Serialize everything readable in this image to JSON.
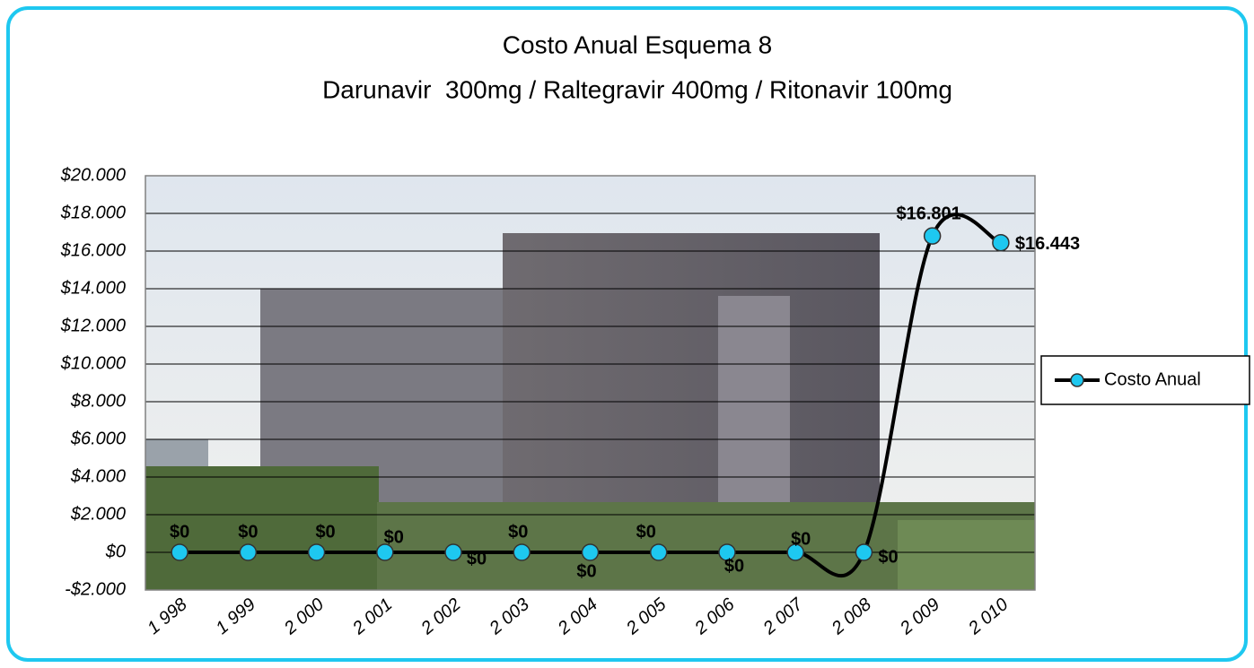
{
  "chart_data": {
    "type": "line",
    "title": "Costo Anual Esquema 8",
    "subtitle": "Darunavir  300mg / Raltegravir 400mg / Ritonavir 100mg",
    "categories": [
      "1 998",
      "1 999",
      "2 000",
      "2 001",
      "2 002",
      "2 003",
      "2 004",
      "2 005",
      "2 006",
      "2 007",
      "2 008",
      "2 009",
      "2 010"
    ],
    "series": [
      {
        "name": "Costo Anual",
        "color": "#000000",
        "marker_color": "#1ec8f0",
        "values": [
          0,
          0,
          0,
          0,
          0,
          0,
          0,
          0,
          0,
          0,
          0,
          16801,
          16443
        ],
        "value_labels": [
          "$0",
          "$0",
          "$0",
          "$0",
          "$0",
          "$0",
          "$0",
          "$0",
          "$0",
          "$0",
          "$0",
          "$16.801",
          "$16.443"
        ]
      }
    ],
    "ylim": [
      -2000,
      20000
    ],
    "yticks": [
      {
        "value": -2000,
        "label": "-$2.000"
      },
      {
        "value": 0,
        "label": "$0"
      },
      {
        "value": 2000,
        "label": "$2.000"
      },
      {
        "value": 4000,
        "label": "$4.000"
      },
      {
        "value": 6000,
        "label": "$6.000"
      },
      {
        "value": 8000,
        "label": "$8.000"
      },
      {
        "value": 10000,
        "label": "$10.000"
      },
      {
        "value": 12000,
        "label": "$12.000"
      },
      {
        "value": 14000,
        "label": "$14.000"
      },
      {
        "value": 16000,
        "label": "$16.000"
      },
      {
        "value": 18000,
        "label": "$18.000"
      },
      {
        "value": 20000,
        "label": "$20.000"
      }
    ],
    "grid": true,
    "legend": "right"
  }
}
